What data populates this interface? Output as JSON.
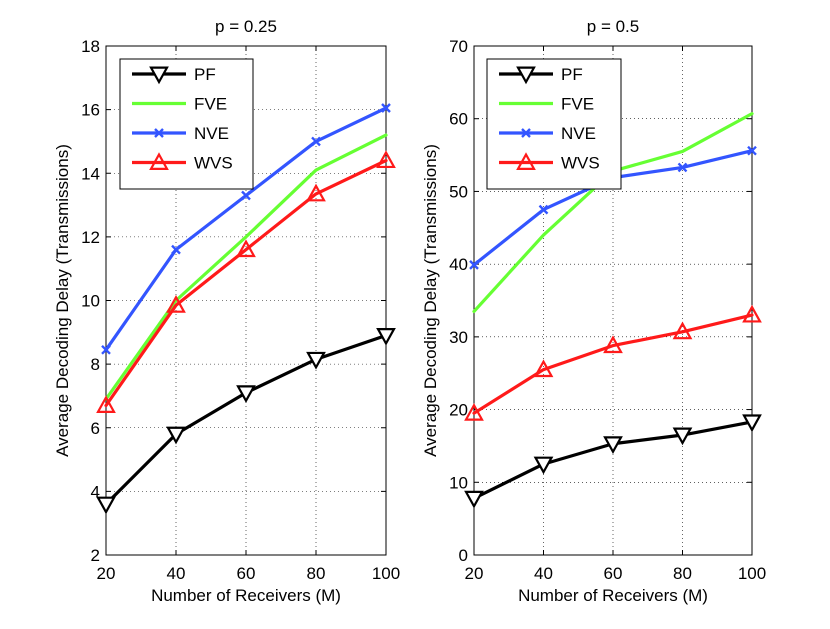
{
  "chart_data": [
    {
      "type": "line",
      "title": "p = 0.25",
      "xlabel": "Number of Receivers (M)",
      "ylabel": "Average Decoding Delay (Transmissions)",
      "x": [
        20,
        40,
        60,
        80,
        100
      ],
      "xticks": [
        "20",
        "40",
        "60",
        "80",
        "100"
      ],
      "yticks": [
        "2",
        "4",
        "6",
        "8",
        "10",
        "12",
        "14",
        "16",
        "18"
      ],
      "xlim": [
        20,
        100
      ],
      "ylim": [
        2,
        18
      ],
      "grid": true,
      "legend_position": "top-left",
      "series": [
        {
          "name": "PF",
          "color": "#000000",
          "marker": "triangle-down",
          "values": [
            3.6,
            5.8,
            7.1,
            8.15,
            8.9
          ]
        },
        {
          "name": "FVE",
          "color": "#66ff33",
          "marker": "none",
          "values": [
            6.9,
            10.0,
            12.0,
            14.1,
            15.2
          ]
        },
        {
          "name": "NVE",
          "color": "#3355ff",
          "marker": "x",
          "values": [
            8.45,
            11.6,
            13.3,
            15.0,
            16.05
          ]
        },
        {
          "name": "WVS",
          "color": "#ff1a1a",
          "marker": "triangle-up",
          "values": [
            6.7,
            9.85,
            11.6,
            13.35,
            14.4
          ]
        }
      ]
    },
    {
      "type": "line",
      "title": "p = 0.5",
      "xlabel": "Number of Receivers (M)",
      "ylabel": "Average Decoding Delay (Transmissions)",
      "x": [
        20,
        40,
        60,
        80,
        100
      ],
      "xticks": [
        "20",
        "40",
        "60",
        "80",
        "100"
      ],
      "yticks": [
        "0",
        "10",
        "20",
        "30",
        "40",
        "50",
        "60",
        "70"
      ],
      "xlim": [
        20,
        100
      ],
      "ylim": [
        0,
        70
      ],
      "grid": true,
      "legend_position": "top-left",
      "series": [
        {
          "name": "PF",
          "color": "#000000",
          "marker": "triangle-down",
          "values": [
            7.8,
            12.5,
            15.3,
            16.5,
            18.3
          ]
        },
        {
          "name": "FVE",
          "color": "#66ff33",
          "marker": "none",
          "values": [
            33.5,
            44.0,
            52.8,
            55.5,
            60.7
          ]
        },
        {
          "name": "NVE",
          "color": "#3355ff",
          "marker": "x",
          "values": [
            39.9,
            47.5,
            51.9,
            53.3,
            55.6
          ]
        },
        {
          "name": "WVS",
          "color": "#ff1a1a",
          "marker": "triangle-up",
          "values": [
            19.5,
            25.5,
            28.8,
            30.7,
            33.0
          ]
        }
      ]
    }
  ]
}
